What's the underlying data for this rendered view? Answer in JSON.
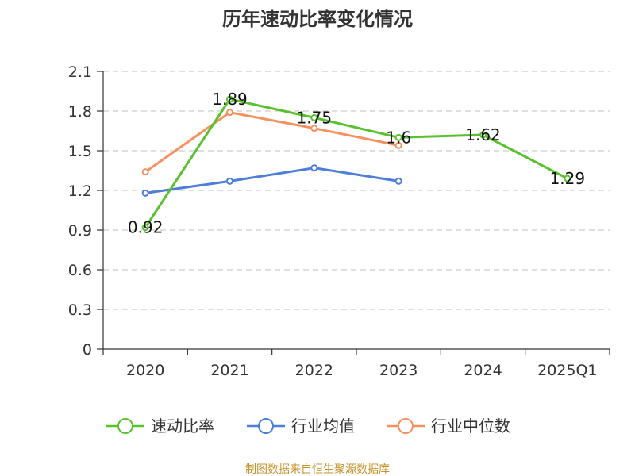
{
  "chart_data": {
    "type": "line",
    "title": "历年速动比率变化情况",
    "categories": [
      "2020",
      "2021",
      "2022",
      "2023",
      "2024",
      "2025Q1"
    ],
    "ylim": [
      0,
      2.1
    ],
    "yticks": [
      "0",
      "0.3",
      "0.6",
      "0.9",
      "1.2",
      "1.5",
      "1.8",
      "2.1"
    ],
    "grid": true,
    "legend_position": "bottom",
    "series": [
      {
        "name": "速动比率",
        "color": "#5ac12e",
        "values": [
          0.92,
          1.89,
          1.75,
          1.6,
          1.62,
          1.29
        ],
        "labels": [
          "0.92",
          "1.89",
          "1.75",
          "1.6",
          "1.62",
          "1.29"
        ]
      },
      {
        "name": "行业均值",
        "color": "#4e7fd8",
        "values": [
          1.18,
          1.27,
          1.37,
          1.27,
          null,
          null
        ]
      },
      {
        "name": "行业中位数",
        "color": "#f59160",
        "values": [
          1.34,
          1.79,
          1.67,
          1.54,
          null,
          null
        ]
      }
    ]
  },
  "source_text": "制图数据来自恒生聚源数据库",
  "source_color": "#c8922a"
}
